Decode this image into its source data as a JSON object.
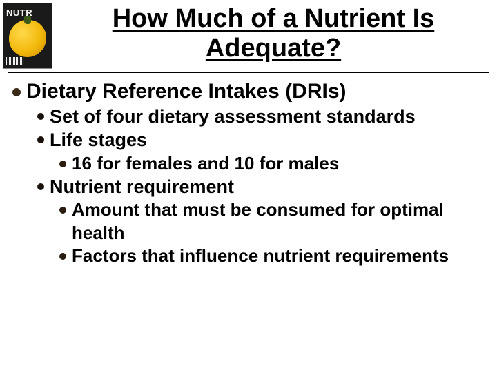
{
  "thumbnail": {
    "label": "NUTR",
    "background_color": "#1a1a1a",
    "text_color": "#f5f5f0",
    "pepper_color": "#f2b90c"
  },
  "title": "How Much of a Nutrient Is Adequate?",
  "title_fontsize": 38,
  "title_underline": true,
  "divider_color": "#000000",
  "bullets": {
    "level1_color": "#3a2a18",
    "level2_color": "#1a120a",
    "level3_color": "#2a1c0e",
    "level1_fontsize": 30,
    "level2_fontsize": 27,
    "level3_fontsize": 26,
    "font_weight": "bold"
  },
  "outline": [
    {
      "level": 1,
      "text": "Dietary Reference Intakes (DRIs)"
    },
    {
      "level": 2,
      "text": "Set of four dietary assessment standards"
    },
    {
      "level": 2,
      "text": "Life stages"
    },
    {
      "level": 3,
      "text": "16 for females and 10 for males"
    },
    {
      "level": 2,
      "text": "Nutrient requirement"
    },
    {
      "level": 3,
      "text": "Amount that must be consumed for optimal health"
    },
    {
      "level": 3,
      "text": "Factors that influence nutrient requirements"
    }
  ],
  "background_color": "#ffffff",
  "text_color": "#000000"
}
